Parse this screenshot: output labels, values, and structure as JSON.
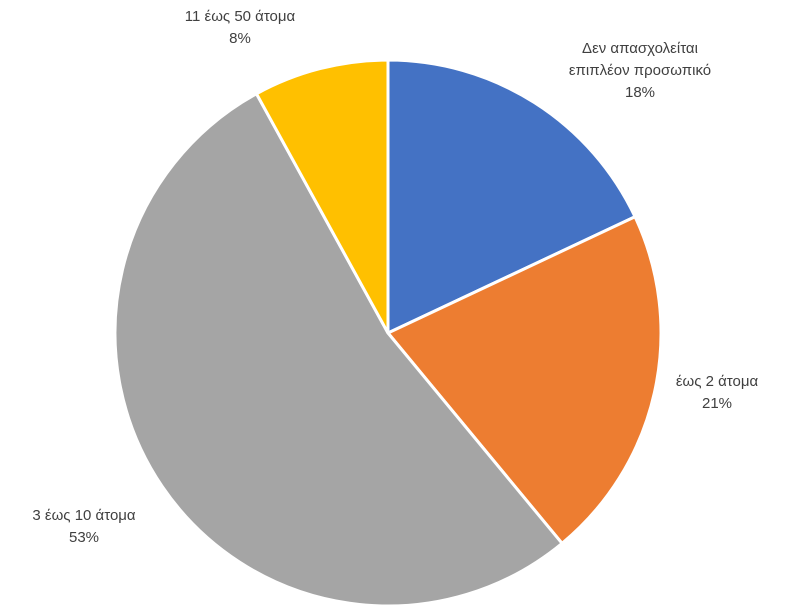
{
  "chart_data": {
    "type": "pie",
    "title": "",
    "slices": [
      {
        "label_lines": [
          "Δεν απασχολείται",
          "επιπλέον προσωπικό"
        ],
        "value": 18,
        "percent_label": "18%",
        "color": "#4472C4"
      },
      {
        "label_lines": [
          "έως 2 άτομα"
        ],
        "value": 21,
        "percent_label": "21%",
        "color": "#ED7D31"
      },
      {
        "label_lines": [
          "3 έως 10 άτομα"
        ],
        "value": 53,
        "percent_label": "53%",
        "color": "#A5A5A5"
      },
      {
        "label_lines": [
          "11 έως 50 άτομα"
        ],
        "value": 8,
        "percent_label": "8%",
        "color": "#FFC000"
      }
    ],
    "start_angle_deg": 0,
    "direction": "clockwise",
    "legend": "none",
    "data_labels": "category-and-percent"
  }
}
